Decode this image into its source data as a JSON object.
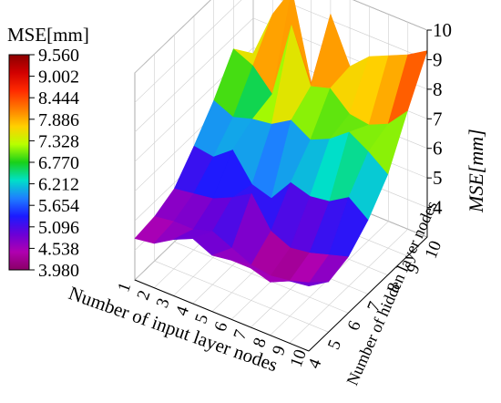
{
  "chart_data": {
    "type": "surface3d",
    "title": "",
    "colorbar": {
      "title": "MSE[mm]",
      "ticks": [
        "9.560",
        "9.002",
        "8.444",
        "7.886",
        "7.328",
        "6.770",
        "6.212",
        "5.654",
        "5.096",
        "4.538",
        "3.980"
      ],
      "min": 3.98,
      "max": 9.56,
      "colors": [
        "#8b0000",
        "#d10000",
        "#ff2a00",
        "#ff7a00",
        "#ffd000",
        "#b8ff00",
        "#19d019",
        "#00e0c8",
        "#1e7fff",
        "#1b1bff",
        "#6a00d8",
        "#b000b0",
        "#8a0066"
      ]
    },
    "x_axis": {
      "label": "Number of input layer nodes",
      "ticks": [
        "1",
        "2",
        "3",
        "4",
        "5",
        "6",
        "7",
        "8",
        "9",
        "10"
      ]
    },
    "y_axis": {
      "label": "Number of hidden layer nodes",
      "ticks": [
        "4",
        "5",
        "6",
        "7",
        "8",
        "9",
        "10"
      ]
    },
    "z_axis": {
      "label": "MSE[mm]",
      "ticks": [
        "4",
        "5",
        "6",
        "7",
        "8",
        "9",
        "10"
      ],
      "range": [
        3,
        10
      ]
    },
    "hidden_nodes": [
      4,
      5,
      6,
      7,
      8,
      9,
      10
    ],
    "input_nodes": [
      1,
      2,
      3,
      4,
      5,
      6,
      7,
      8,
      9,
      10
    ],
    "z": [
      [
        4.4,
        4.5,
        4.9,
        5.2,
        4.9,
        5.0,
        5.0,
        4.8,
        5.1,
        5.2
      ],
      [
        4.5,
        4.6,
        4.6,
        4.8,
        4.5,
        4.2,
        4.1,
        4.2,
        4.4,
        4.7
      ],
      [
        4.8,
        4.9,
        5.0,
        5.3,
        5.7,
        4.7,
        4.4,
        4.5,
        4.7,
        4.9
      ],
      [
        5.6,
        5.5,
        6.0,
        5.1,
        4.9,
        5.7,
        5.5,
        5.6,
        6.0,
        5.5
      ],
      [
        6.5,
        6.2,
        6.4,
        6.5,
        6.9,
        6.5,
        6.8,
        7.3,
        6.9,
        6.4
      ],
      [
        7.6,
        7.3,
        6.6,
        9.2,
        7.4,
        7.6,
        7.0,
        6.9,
        7.2,
        7.9
      ],
      [
        6.8,
        8.4,
        9.5,
        6.6,
        9.2,
        7.7,
        8.3,
        8.6,
        8.9,
        9.3
      ]
    ]
  }
}
